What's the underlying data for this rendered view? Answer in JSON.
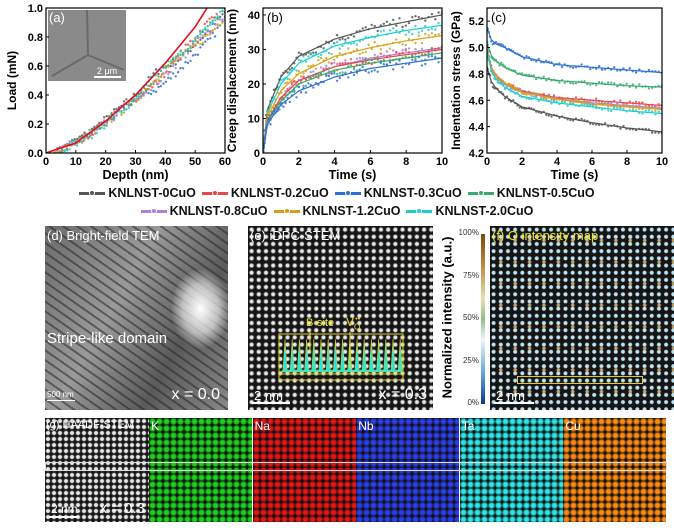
{
  "panel_labels": {
    "a": "(a)",
    "b": "(b)",
    "c": "(c)"
  },
  "colors": {
    "0CuO": "#555555",
    "0.2CuO": "#e8474a",
    "0.3CuO": "#2a6fd6",
    "0.5CuO": "#3aaa6a",
    "0.8CuO": "#b07fd8",
    "1.2CuO": "#d4a017",
    "2.0CuO": "#22cccc",
    "fit": "#e0101a"
  },
  "legend": [
    {
      "key": "0CuO",
      "label": "KNLNST-0CuO"
    },
    {
      "key": "0.2CuO",
      "label": "KNLNST-0.2CuO"
    },
    {
      "key": "0.3CuO",
      "label": "KNLNST-0.3CuO"
    },
    {
      "key": "0.5CuO",
      "label": "KNLNST-0.5CuO"
    },
    {
      "key": "0.8CuO",
      "label": "KNLNST-0.8CuO"
    },
    {
      "key": "1.2CuO",
      "label": "KNLNST-1.2CuO"
    },
    {
      "key": "2.0CuO",
      "label": "KNLNST-2.0CuO"
    }
  ],
  "chart_data": [
    {
      "id": "a",
      "type": "scatter",
      "xlabel": "Depth (nm)",
      "ylabel": "Load (mN)",
      "xlim": [
        0,
        60
      ],
      "ylim": [
        0,
        1.0
      ],
      "xticks": [
        "0",
        "10",
        "20",
        "30",
        "40",
        "50",
        "60"
      ],
      "yticks": [
        "0.0",
        "0.2",
        "0.4",
        "0.6",
        "0.8",
        "1.0"
      ],
      "inset": {
        "scale_label": "2 μm"
      },
      "fit": {
        "x": [
          0,
          10,
          20,
          30,
          40,
          50,
          54
        ],
        "y": [
          0,
          0.07,
          0.22,
          0.4,
          0.62,
          0.87,
          1.0
        ]
      },
      "series": [
        {
          "key": "0CuO",
          "x": [
            3,
            15,
            30,
            37,
            45,
            55,
            60
          ],
          "y": [
            0,
            0.15,
            0.4,
            0.56,
            0.65,
            0.85,
            0.97
          ]
        },
        {
          "key": "0.2CuO",
          "x": [
            3,
            15,
            30,
            38,
            45,
            55,
            58
          ],
          "y": [
            0,
            0.13,
            0.38,
            0.5,
            0.68,
            0.92,
            1.0
          ]
        },
        {
          "key": "0.3CuO",
          "x": [
            3,
            15,
            30,
            38,
            45,
            55,
            60
          ],
          "y": [
            0,
            0.13,
            0.37,
            0.45,
            0.58,
            0.78,
            0.92
          ]
        },
        {
          "key": "0.5CuO",
          "x": [
            3,
            15,
            30,
            37,
            45,
            55,
            60
          ],
          "y": [
            0,
            0.14,
            0.38,
            0.52,
            0.66,
            0.88,
            0.97
          ]
        },
        {
          "key": "0.8CuO",
          "x": [
            3,
            15,
            30,
            38,
            45,
            55,
            60
          ],
          "y": [
            0,
            0.13,
            0.38,
            0.5,
            0.64,
            0.85,
            0.95
          ]
        },
        {
          "key": "1.2CuO",
          "x": [
            3,
            15,
            30,
            40,
            45,
            55,
            60
          ],
          "y": [
            0,
            0.12,
            0.36,
            0.58,
            0.66,
            0.82,
            0.94
          ]
        },
        {
          "key": "2.0CuO",
          "x": [
            3,
            15,
            30,
            37,
            45,
            55,
            60
          ],
          "y": [
            0,
            0.12,
            0.36,
            0.55,
            0.68,
            0.88,
            1.0
          ]
        }
      ]
    },
    {
      "id": "b",
      "type": "scatter",
      "xlabel": "Time (s)",
      "ylabel": "Creep displacement (nm)",
      "xlim": [
        0,
        10
      ],
      "ylim": [
        0,
        42
      ],
      "xticks": [
        "0",
        "2",
        "4",
        "6",
        "8",
        "10"
      ],
      "yticks": [
        "0",
        "10",
        "20",
        "30",
        "40"
      ],
      "series": [
        {
          "key": "0CuO",
          "x": [
            0,
            0.2,
            1,
            2,
            4,
            6,
            8,
            10
          ],
          "y": [
            0,
            12,
            22,
            28,
            33,
            36,
            38,
            40
          ]
        },
        {
          "key": "2.0CuO",
          "x": [
            0,
            0.2,
            1,
            2,
            4,
            6,
            8,
            10
          ],
          "y": [
            0,
            11,
            20,
            26,
            31,
            33.5,
            35.5,
            37
          ]
        },
        {
          "key": "1.2CuO",
          "x": [
            0,
            0.2,
            1,
            2,
            4,
            6,
            8,
            10
          ],
          "y": [
            0,
            10,
            18,
            23,
            28,
            30.5,
            32.5,
            34
          ]
        },
        {
          "key": "0.8CuO",
          "x": [
            0,
            0.2,
            1,
            2,
            4,
            6,
            8,
            10
          ],
          "y": [
            0,
            9,
            16,
            21,
            25,
            27.5,
            29,
            30.5
          ]
        },
        {
          "key": "0.2CuO",
          "x": [
            0,
            0.2,
            1,
            2,
            4,
            6,
            8,
            10
          ],
          "y": [
            0,
            9,
            16,
            21,
            25,
            27,
            28.5,
            30
          ]
        },
        {
          "key": "0.5CuO",
          "x": [
            0,
            0.2,
            1,
            2,
            4,
            6,
            8,
            10
          ],
          "y": [
            0,
            8.5,
            15,
            20,
            24,
            26,
            27.5,
            29
          ]
        },
        {
          "key": "0.3CuO",
          "x": [
            0,
            0.2,
            1,
            2,
            4,
            6,
            8,
            10
          ],
          "y": [
            0,
            8,
            14,
            18,
            22,
            24.5,
            26,
            27.5
          ]
        }
      ]
    },
    {
      "id": "c",
      "type": "scatter",
      "xlabel": "Time (s)",
      "ylabel": "Indentation stress (GPa)",
      "xlim": [
        0,
        10
      ],
      "ylim": [
        4.2,
        5.3
      ],
      "xticks": [
        "0",
        "2",
        "4",
        "6",
        "8",
        "10"
      ],
      "yticks": [
        "4.2",
        "4.4",
        "4.6",
        "4.8",
        "5.0",
        "5.2"
      ],
      "series": [
        {
          "key": "0.3CuO",
          "x": [
            0,
            0.3,
            1,
            2,
            4,
            6,
            8,
            10
          ],
          "y": [
            5.15,
            5.04,
            5.0,
            4.93,
            4.87,
            4.85,
            4.83,
            4.81
          ]
        },
        {
          "key": "0.5CuO",
          "x": [
            0,
            0.3,
            1,
            2,
            4,
            6,
            8,
            10
          ],
          "y": [
            5.03,
            4.92,
            4.85,
            4.79,
            4.75,
            4.73,
            4.71,
            4.7
          ]
        },
        {
          "key": "0.2CuO",
          "x": [
            0,
            0.3,
            1,
            2,
            4,
            6,
            8,
            10
          ],
          "y": [
            4.98,
            4.82,
            4.73,
            4.67,
            4.62,
            4.6,
            4.58,
            4.56
          ]
        },
        {
          "key": "0.8CuO",
          "x": [
            0,
            0.3,
            1,
            2,
            4,
            6,
            8,
            10
          ],
          "y": [
            4.97,
            4.81,
            4.72,
            4.66,
            4.61,
            4.58,
            4.56,
            4.54
          ]
        },
        {
          "key": "1.2CuO",
          "x": [
            0,
            0.3,
            1,
            2,
            4,
            6,
            8,
            10
          ],
          "y": [
            4.97,
            4.81,
            4.73,
            4.66,
            4.61,
            4.57,
            4.55,
            4.53
          ]
        },
        {
          "key": "2.0CuO",
          "x": [
            0,
            0.3,
            1,
            2,
            4,
            6,
            8,
            10
          ],
          "y": [
            4.97,
            4.79,
            4.7,
            4.63,
            4.58,
            4.55,
            4.52,
            4.5
          ]
        },
        {
          "key": "0CuO",
          "x": [
            0,
            0.3,
            1,
            2,
            4,
            6,
            8,
            10
          ],
          "y": [
            4.85,
            4.72,
            4.63,
            4.55,
            4.48,
            4.43,
            4.39,
            4.36
          ]
        }
      ]
    }
  ],
  "panel_d": {
    "title": "(d) Bright-field TEM",
    "domain_label": "Stripe-like domain",
    "scale": "500 nm",
    "composition": "x = 0.0"
  },
  "panel_e": {
    "title": "(e) iDPC-STEM",
    "bsite": "B-site",
    "vacancy": "V",
    "vacancy_sub": "O",
    "vacancy_sup": "••",
    "scale": "2 nm",
    "composition": "x = 0.3"
  },
  "panel_f": {
    "title": "(f) O intensity map",
    "scale": "2 nm",
    "colorbar_label": "Normalized intensity (a.u.)",
    "colorbar_ticks": [
      "100%",
      "75%",
      "50%",
      "25%",
      "0%"
    ]
  },
  "panel_g": {
    "title": "(g) HAADF-STEM",
    "scale": "2 nm",
    "composition": "x = 0.3",
    "elements": [
      {
        "label": "K",
        "color": "#1fd01f"
      },
      {
        "label": "Na",
        "color": "#e81515"
      },
      {
        "label": "Nb",
        "color": "#2a3ef0"
      },
      {
        "label": "Ta",
        "color": "#2ee6e6"
      },
      {
        "label": "Cu",
        "color": "#ff8a10"
      }
    ]
  }
}
